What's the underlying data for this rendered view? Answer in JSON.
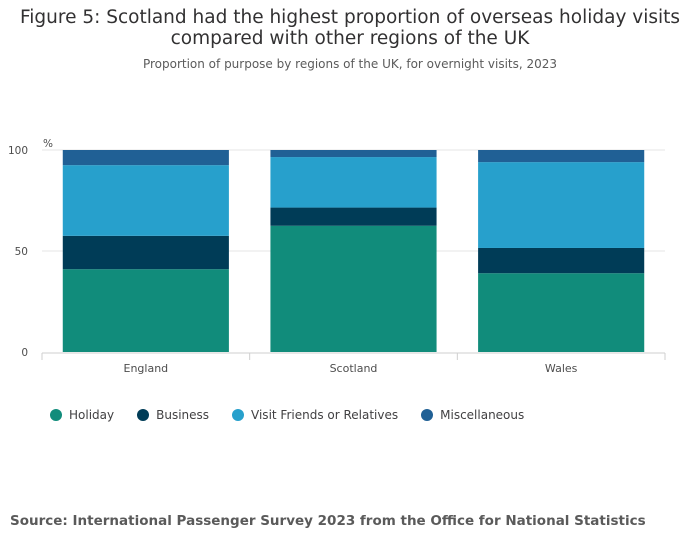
{
  "title": "Figure 5: Scotland had the highest proportion of overseas holiday visits compared with other regions of the UK",
  "subtitle": "Proportion of purpose by regions of the UK, for overnight visits, 2023",
  "source": "Source: International Passenger Survey 2023 from the Office for National Statistics",
  "colors": {
    "holiday": "#118c7b",
    "business": "#003c57",
    "vfr": "#27a0cc",
    "misc": "#206095"
  },
  "chart_data": {
    "type": "bar",
    "stacked": true,
    "title": "Figure 5: Scotland had the highest proportion of overseas holiday visits compared with other regions of the UK",
    "subtitle": "Proportion of purpose by regions of the UK, for overnight visits, 2023",
    "ylabel": "%",
    "xlabel": "",
    "ylim": [
      0,
      100
    ],
    "yticks": [
      0,
      50,
      100
    ],
    "categories": [
      "England",
      "Scotland",
      "Wales"
    ],
    "series": [
      {
        "name": "Holiday",
        "key": "holiday",
        "values": [
          41,
          62.5,
          39
        ]
      },
      {
        "name": "Business",
        "key": "business",
        "values": [
          16.5,
          9,
          12.5
        ]
      },
      {
        "name": "Visit Friends or Relatives",
        "key": "vfr",
        "values": [
          35,
          25,
          42.5
        ]
      },
      {
        "name": "Miscellaneous",
        "key": "misc",
        "values": [
          7.5,
          3.5,
          6
        ]
      }
    ],
    "legend_position": "bottom-left"
  }
}
